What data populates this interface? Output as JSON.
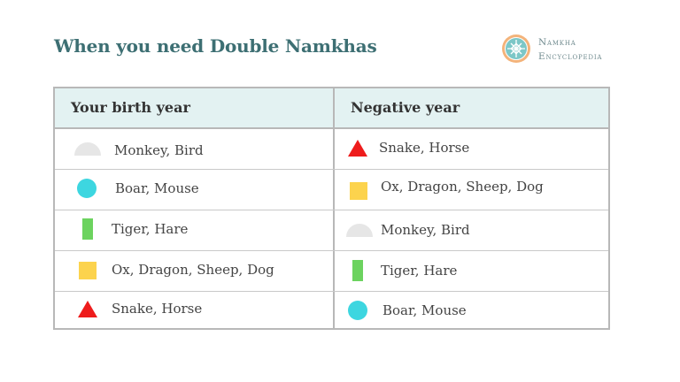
{
  "title": "When you need Double Namkhas",
  "brand": {
    "line1": "Namkha",
    "line2": "Encyclopedia",
    "logo_icon": "namkha-logo-icon"
  },
  "colors": {
    "title": "#3d6f73",
    "header_bg": "#e3f2f2",
    "semicircle": "#e6e6e6",
    "circle": "#3dd6e0",
    "bar": "#6cd35f",
    "square": "#fcd34d",
    "triangle": "#ee1c1c"
  },
  "table": {
    "headers": [
      "Your birth year",
      "Negative year"
    ],
    "rows": [
      {
        "birth": {
          "icon": "semicircle-icon",
          "text": "Monkey, Bird"
        },
        "negative": {
          "icon": "triangle-icon",
          "text": "Snake, Horse"
        }
      },
      {
        "birth": {
          "icon": "circle-icon",
          "text": "Boar, Mouse"
        },
        "negative": {
          "icon": "square-icon",
          "text": "Ox, Dragon, Sheep, Dog"
        }
      },
      {
        "birth": {
          "icon": "bar-icon",
          "text": "Tiger, Hare"
        },
        "negative": {
          "icon": "semicircle-icon",
          "text": "Monkey, Bird"
        }
      },
      {
        "birth": {
          "icon": "square-icon",
          "text": "Ox, Dragon, Sheep, Dog"
        },
        "negative": {
          "icon": "bar-icon",
          "text": "Tiger, Hare"
        }
      },
      {
        "birth": {
          "icon": "triangle-icon",
          "text": "Snake, Horse"
        },
        "negative": {
          "icon": "circle-icon",
          "text": "Boar, Mouse"
        }
      }
    ]
  }
}
